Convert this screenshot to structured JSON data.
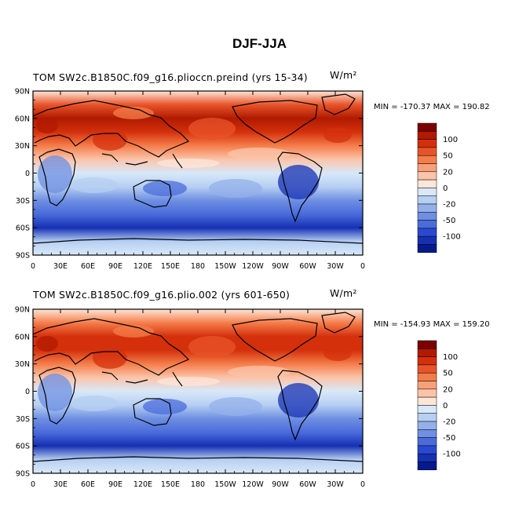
{
  "title": "DJF-JJA",
  "panels": [
    {
      "left_label": "TOM SW2c.B1850C.f09_g16.plioccn.preind",
      "right_label": "(yrs 15-34)",
      "units": "W/m²",
      "stats": "MIN = -170.37  MAX = 190.82"
    },
    {
      "left_label": "TOM SW2c.B1850C.f09_g16.plio.002",
      "right_label": "(yrs 601-650)",
      "units": "W/m²",
      "stats": "MIN = -154.93  MAX = 159.20"
    }
  ],
  "chart_data": {
    "type": "heatmap",
    "title": "DJF-JJA",
    "variable": "TOM SW",
    "units": "W/m²",
    "x_ticks": [
      "0",
      "30E",
      "60E",
      "90E",
      "120E",
      "150E",
      "180",
      "150W",
      "120W",
      "90W",
      "60W",
      "30W",
      "0"
    ],
    "y_ticks": [
      "90N",
      "60N",
      "30N",
      "0",
      "30S",
      "60S",
      "90S"
    ],
    "xlim": [
      0,
      360
    ],
    "ylim": [
      -90,
      90
    ],
    "colorbar": {
      "labels": [
        "100",
        "50",
        "20",
        "0",
        "-20",
        "-50",
        "-100"
      ],
      "colors": [
        "#7a0000",
        "#b01a00",
        "#d4300c",
        "#e8542a",
        "#f57d4a",
        "#f8a07a",
        "#fbc4aa",
        "#fde6d8",
        "#d8e8f8",
        "#b6cff2",
        "#94b0ea",
        "#6e8fe2",
        "#4a6cdb",
        "#2a49cf",
        "#1530b3",
        "#061a8c"
      ]
    },
    "panels": [
      {
        "name": "SW2c.B1850C.f09_g16.plioccn.preind (yrs 15-34)",
        "min": -170.37,
        "max": 190.82,
        "zonal_mean_profile": [
          {
            "lat": 90,
            "value": 10
          },
          {
            "lat": 75,
            "value": 60
          },
          {
            "lat": 60,
            "value": 90
          },
          {
            "lat": 45,
            "value": 80
          },
          {
            "lat": 30,
            "value": 50
          },
          {
            "lat": 15,
            "value": 25
          },
          {
            "lat": 0,
            "value": 0
          },
          {
            "lat": -15,
            "value": -25
          },
          {
            "lat": -30,
            "value": -45
          },
          {
            "lat": -45,
            "value": -70
          },
          {
            "lat": -60,
            "value": -100
          },
          {
            "lat": -75,
            "value": -15
          },
          {
            "lat": -90,
            "value": -5
          }
        ]
      },
      {
        "name": "SW2c.B1850C.f09_g16.plio.002 (yrs 601-650)",
        "min": -154.93,
        "max": 159.2,
        "zonal_mean_profile": [
          {
            "lat": 90,
            "value": 10
          },
          {
            "lat": 75,
            "value": 55
          },
          {
            "lat": 60,
            "value": 85
          },
          {
            "lat": 45,
            "value": 75
          },
          {
            "lat": 30,
            "value": 50
          },
          {
            "lat": 15,
            "value": 25
          },
          {
            "lat": 0,
            "value": 0
          },
          {
            "lat": -15,
            "value": -25
          },
          {
            "lat": -30,
            "value": -45
          },
          {
            "lat": -45,
            "value": -65
          },
          {
            "lat": -60,
            "value": -95
          },
          {
            "lat": -75,
            "value": -15
          },
          {
            "lat": -90,
            "value": -5
          }
        ]
      }
    ]
  }
}
